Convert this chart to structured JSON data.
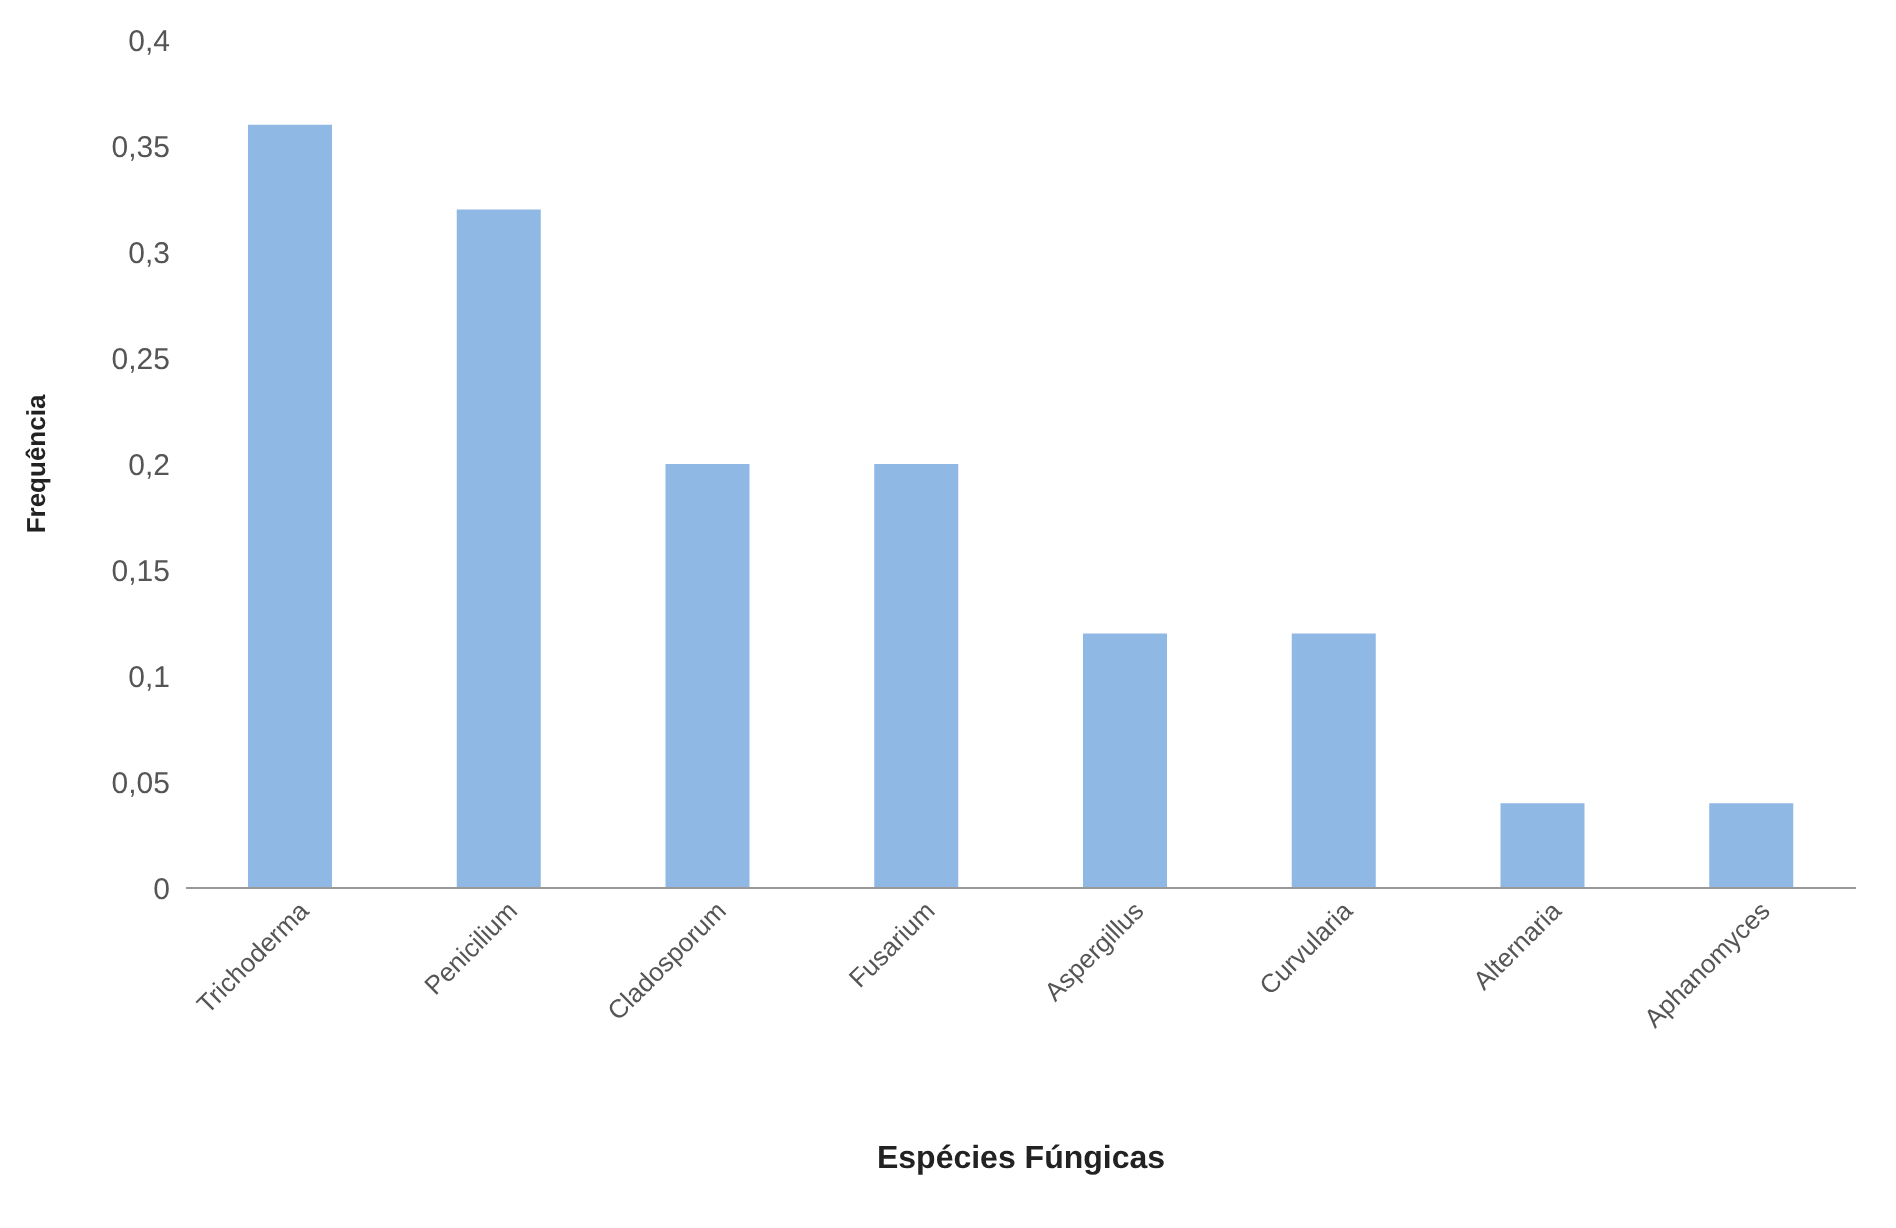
{
  "chart_data": {
    "type": "bar",
    "xlabel": "Espécies Fúngicas",
    "ylabel": "Frequência",
    "categories": [
      "Trichoderma",
      "Penicilium",
      "Cladosporum",
      "Fusarium",
      "Aspergillus",
      "Curvularia",
      "Alternaria",
      "Aphanomyces"
    ],
    "values": [
      0.36,
      0.32,
      0.2,
      0.2,
      0.12,
      0.12,
      0.04,
      0.04
    ],
    "color": "#8fb8e4",
    "ylim": [
      0,
      0.4
    ],
    "yticks": [
      0,
      {
        "value": 0.05,
        "label": "0,05"
      },
      {
        "value": 0.1,
        "label": "0,1"
      },
      {
        "value": 0.15,
        "label": "0,15"
      },
      {
        "value": 0.2,
        "label": "0,2"
      },
      {
        "value": 0.25,
        "label": "0,25"
      },
      {
        "value": 0.3,
        "label": "0,3"
      },
      {
        "value": 0.35,
        "label": "0,35"
      },
      {
        "value": 0.4,
        "label": "0,4"
      }
    ],
    "grid": false
  }
}
